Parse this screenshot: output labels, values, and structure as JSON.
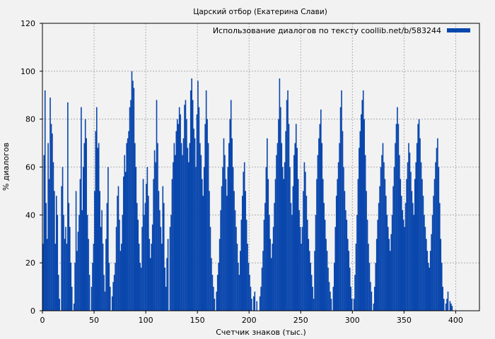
{
  "chart_data": {
    "type": "bar",
    "title": "Царский отбор (Екатерина Слави)",
    "xlabel": "Счетчик знаков (тыс.)",
    "ylabel": "% диалогов",
    "xlim": [
      0,
      423
    ],
    "ylim": [
      0,
      120
    ],
    "xticks": [
      0,
      50,
      100,
      150,
      200,
      250,
      300,
      350,
      400
    ],
    "yticks": [
      0,
      20,
      40,
      60,
      80,
      100,
      120
    ],
    "grid": true,
    "legend_position": "top-right",
    "bar_color": "#0a47ad",
    "background_color": "#f2f2f2",
    "grid_color": "#a0a0a0",
    "series": [
      {
        "name": "Использование диалогов по тексту coollib.net/b/583244",
        "x_step": 1,
        "values": [
          28,
          65,
          92,
          45,
          30,
          70,
          55,
          89,
          78,
          74,
          62,
          50,
          28,
          48,
          40,
          15,
          5,
          0,
          52,
          60,
          40,
          30,
          35,
          28,
          87,
          45,
          35,
          20,
          10,
          0,
          3,
          20,
          50,
          25,
          33,
          40,
          55,
          85,
          42,
          60,
          70,
          80,
          72,
          40,
          30,
          15,
          0,
          10,
          20,
          28,
          50,
          75,
          85,
          68,
          70,
          50,
          35,
          42,
          28,
          15,
          8,
          30,
          45,
          60,
          20,
          10,
          0,
          6,
          12,
          15,
          20,
          35,
          48,
          52,
          38,
          25,
          28,
          40,
          56,
          65,
          58,
          70,
          72,
          75,
          85,
          88,
          100,
          96,
          93,
          70,
          60,
          45,
          38,
          28,
          20,
          18,
          35,
          55,
          40,
          45,
          53,
          60,
          48,
          30,
          22,
          28,
          36,
          55,
          67,
          62,
          88,
          70,
          50,
          42,
          35,
          28,
          52,
          45,
          18,
          10,
          22,
          30,
          0,
          35,
          40,
          55,
          62,
          70,
          65,
          75,
          80,
          78,
          85,
          82,
          70,
          65,
          72,
          86,
          88,
          80,
          68,
          62,
          70,
          92,
          97,
          88,
          76,
          72,
          60,
          82,
          96,
          85,
          70,
          65,
          55,
          48,
          60,
          78,
          92,
          80,
          70,
          50,
          35,
          22,
          15,
          10,
          5,
          0,
          8,
          15,
          20,
          30,
          42,
          52,
          60,
          72,
          65,
          55,
          48,
          60,
          70,
          80,
          88,
          72,
          60,
          50,
          42,
          35,
          28,
          20,
          15,
          25,
          38,
          48,
          58,
          62,
          50,
          38,
          28,
          20,
          15,
          10,
          5,
          0,
          6,
          8,
          0,
          4,
          0,
          0,
          6,
          10,
          18,
          25,
          38,
          45,
          60,
          72,
          55,
          40,
          30,
          22,
          28,
          35,
          45,
          55,
          65,
          70,
          80,
          97,
          85,
          70,
          60,
          55,
          62,
          75,
          88,
          92,
          78,
          60,
          45,
          40,
          52,
          65,
          70,
          78,
          68,
          55,
          42,
          35,
          28,
          35,
          50,
          62,
          58,
          48,
          38,
          30,
          25,
          20,
          15,
          10,
          5,
          25,
          40,
          55,
          65,
          72,
          78,
          84,
          70,
          55,
          45,
          38,
          30,
          25,
          18,
          12,
          8,
          5,
          0,
          10,
          20,
          35,
          48,
          55,
          62,
          70,
          85,
          92,
          75,
          60,
          50,
          42,
          38,
          30,
          25,
          18,
          10,
          5,
          0,
          5,
          15,
          28,
          40,
          55,
          68,
          75,
          82,
          88,
          92,
          80,
          65,
          50,
          38,
          28,
          20,
          12,
          8,
          0,
          3,
          10,
          20,
          30,
          38,
          45,
          52,
          60,
          65,
          70,
          62,
          55,
          48,
          40,
          35,
          30,
          25,
          32,
          40,
          52,
          60,
          70,
          78,
          85,
          78,
          65,
          55,
          48,
          42,
          38,
          35,
          45,
          55,
          62,
          70,
          66,
          58,
          50,
          45,
          40,
          55,
          62,
          70,
          78,
          80,
          72,
          62,
          55,
          48,
          40,
          35,
          30,
          25,
          20,
          18,
          25,
          32,
          40,
          48,
          55,
          62,
          68,
          72,
          60,
          45,
          30,
          20,
          10,
          5,
          0,
          3,
          5,
          8,
          0,
          4,
          3,
          2,
          0,
          0,
          0,
          0,
          0,
          0
        ]
      }
    ]
  }
}
